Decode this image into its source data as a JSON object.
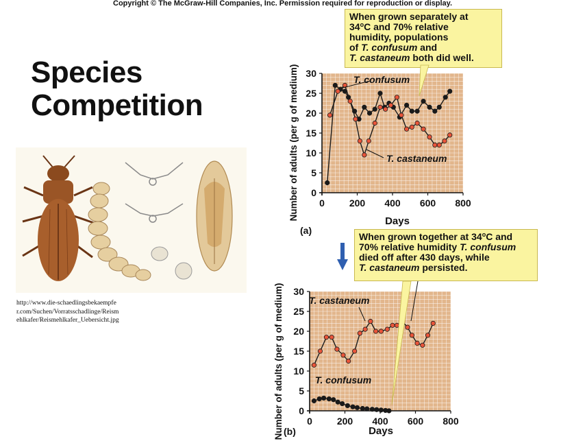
{
  "header": {
    "copyright": "Copyright © The McGraw-Hill Companies, Inc. Permission required for reproduction or display."
  },
  "title": {
    "line1": "Species",
    "line2": "Competition"
  },
  "image_source": "http://www.die-schaedlingsbekaempfer.com/Suchen/Vorratsschadlinge/Reismehlkafer/Reismehlkafer_Uebersicht.jpg",
  "callout_a": {
    "l1": "When grown separately at",
    "l2a": "34",
    "l2sup": "o",
    "l2b": "C and 70% relative",
    "l3": "humidity, populations",
    "l4a": "of ",
    "l4i": "T. confusum",
    "l4b": " and",
    "l5i": "T. castaneum",
    "l5b": " both did well."
  },
  "callout_b": {
    "l1a": "When grown together at 34",
    "l1sup": "o",
    "l1b": "C and",
    "l2a": "70% relative humidity ",
    "l2i": "T. confusum",
    "l3": "died off after 430 days, while",
    "l4i": "T. castaneum",
    "l4b": " persisted."
  },
  "colors": {
    "panel_bg": "#e2b68c",
    "grid": "#ffffff",
    "castaneum": "#e8553a",
    "confusum": "#1a1a1a",
    "callout_bg": "#faf4a0",
    "arrow": "#2f5fb0"
  },
  "chart_data": [
    {
      "type": "line",
      "panel_label": "(a)",
      "xlabel": "Days",
      "ylabel": "Number of adults (per g of medium)",
      "xlim": [
        0,
        800
      ],
      "ylim": [
        0,
        30
      ],
      "xticks": [
        0,
        200,
        400,
        600,
        800
      ],
      "yticks": [
        0,
        5,
        10,
        15,
        20,
        25,
        30
      ],
      "grid": true,
      "series": [
        {
          "name": "T. confusum",
          "color": "#1a1a1a",
          "x": [
            30,
            75,
            105,
            130,
            150,
            185,
            210,
            240,
            270,
            300,
            330,
            355,
            380,
            405,
            440,
            480,
            510,
            540,
            575,
            610,
            640,
            665,
            700,
            725
          ],
          "y": [
            2.5,
            27,
            26,
            25.5,
            24,
            20.5,
            18.5,
            21.5,
            20,
            21,
            25,
            21.5,
            22.5,
            21.5,
            19,
            22,
            20.5,
            20.5,
            23,
            21.5,
            20.5,
            21.5,
            24,
            25.5
          ]
        },
        {
          "name": "T. castaneum",
          "color": "#e8553a",
          "x": [
            45,
            90,
            130,
            160,
            190,
            215,
            240,
            265,
            300,
            330,
            360,
            390,
            425,
            450,
            480,
            510,
            540,
            575,
            610,
            640,
            665,
            695,
            725
          ],
          "y": [
            19.5,
            25.5,
            27,
            23,
            18.5,
            13,
            9.5,
            13,
            17.5,
            21.5,
            21,
            22,
            24,
            19.5,
            16,
            16.5,
            17.5,
            16,
            14,
            12,
            12,
            13,
            14.5
          ]
        }
      ],
      "annotations": [
        "T. confusum",
        "T. castaneum"
      ]
    },
    {
      "type": "line",
      "panel_label": "(b)",
      "xlabel": "Days",
      "ylabel": "Number of adults (per g of medium)",
      "xlim": [
        0,
        800
      ],
      "ylim": [
        0,
        30
      ],
      "xticks": [
        0,
        200,
        400,
        600,
        800
      ],
      "yticks": [
        0,
        5,
        10,
        15,
        20,
        25,
        30
      ],
      "grid": true,
      "series": [
        {
          "name": "T. castaneum",
          "color": "#e8553a",
          "x": [
            25,
            60,
            95,
            125,
            155,
            190,
            220,
            255,
            285,
            315,
            345,
            375,
            405,
            440,
            470,
            495,
            525,
            555,
            580,
            610,
            640,
            670,
            700
          ],
          "y": [
            11.5,
            15,
            18.5,
            18.5,
            15.5,
            14,
            12.5,
            15,
            19.5,
            20.5,
            22.5,
            20,
            20,
            20.5,
            21.5,
            21.5,
            22.5,
            21,
            19,
            17,
            16.5,
            19,
            22
          ]
        },
        {
          "name": "T. confusum",
          "color": "#1a1a1a",
          "x": [
            25,
            55,
            80,
            110,
            135,
            160,
            185,
            215,
            245,
            270,
            300,
            325,
            355,
            380,
            405,
            430,
            450
          ],
          "y": [
            2.5,
            3,
            3.2,
            3,
            2.8,
            2.2,
            1.8,
            1.3,
            1.0,
            0.8,
            0.6,
            0.5,
            0.4,
            0.3,
            0.2,
            0.1,
            0
          ]
        }
      ],
      "annotations": [
        "T. castaneum",
        "T. confusum"
      ]
    }
  ]
}
